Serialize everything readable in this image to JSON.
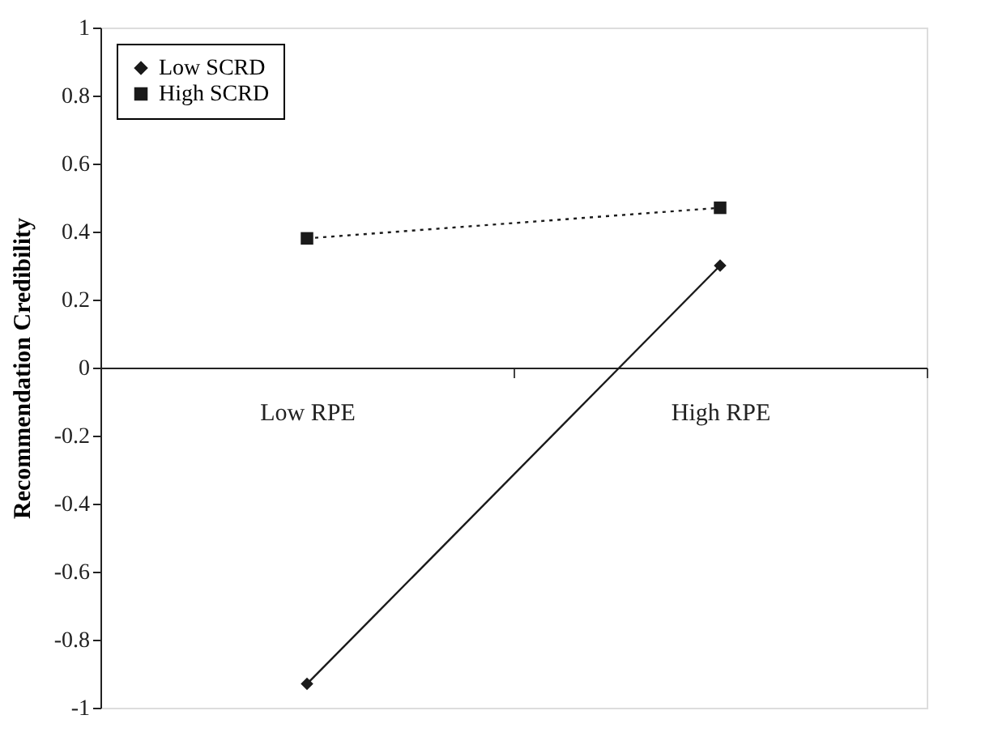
{
  "chart_data": {
    "type": "line",
    "ylabel": "Recommendation Credibility",
    "categories": [
      "Low RPE",
      "High RPE"
    ],
    "series": [
      {
        "name": "Low SCRD",
        "color": "#1a1a1a",
        "marker": "diamond",
        "line_style": "solid",
        "values": [
          -0.93,
          0.3
        ]
      },
      {
        "name": "High SCRD",
        "color": "#1a1a1a",
        "marker": "square",
        "line_style": "dotted",
        "values": [
          0.38,
          0.47
        ]
      }
    ],
    "ylim": [
      -1,
      1
    ],
    "yticks": [
      -1,
      -0.8,
      -0.6,
      -0.4,
      -0.2,
      0,
      0.2,
      0.4,
      0.6,
      0.8,
      1
    ],
    "grid": false,
    "legend": "top left"
  }
}
